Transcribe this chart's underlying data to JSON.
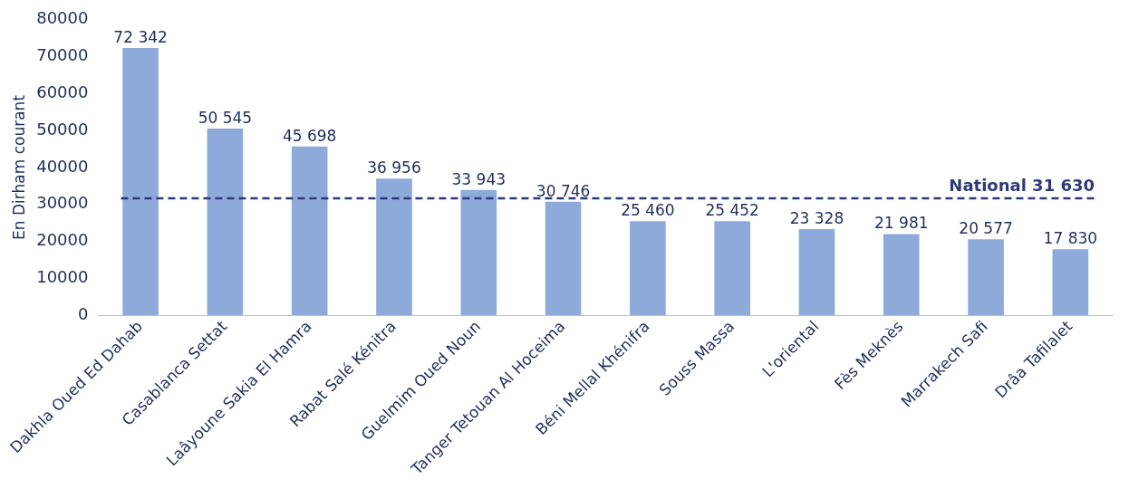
{
  "chart_data": {
    "type": "bar",
    "ylabel": "En Dirham courant",
    "categories": [
      "Dakhla Oued Ed Dahab",
      "Casablanca Settat",
      "Laâyoune Sakia El Hamra",
      "Rabat Salé Kénitra",
      "Guelmim Oued Noun",
      "Tanger Tetouan Al Hoceima",
      "Béni Mellal Khénifra",
      "Souss Massa",
      "L'oriental",
      "Fès Meknès",
      "Marrakech Safi",
      "Drâa Tafilalet"
    ],
    "series": [
      {
        "color": "#8eaadb",
        "values": [
          72342,
          50545,
          45698,
          36956,
          33943,
          30746,
          25460,
          25452,
          23328,
          21981,
          20577,
          17830
        ],
        "value_labels": [
          "72 342",
          "50 545",
          "45 698",
          "36 956",
          "33 943",
          "30 746",
          "25 460",
          "25 452",
          "23 328",
          "21 981",
          "20 577",
          "17 830"
        ]
      }
    ],
    "ylim": [
      0,
      80000
    ],
    "yticks": [
      0,
      10000,
      20000,
      30000,
      40000,
      50000,
      60000,
      70000,
      80000
    ],
    "grid": false,
    "legend": false,
    "ref_lines": [
      {
        "axis": "y",
        "value": 31630,
        "label": "National 31 630",
        "color": "#2e3a78",
        "line_style": "dashed"
      }
    ]
  }
}
